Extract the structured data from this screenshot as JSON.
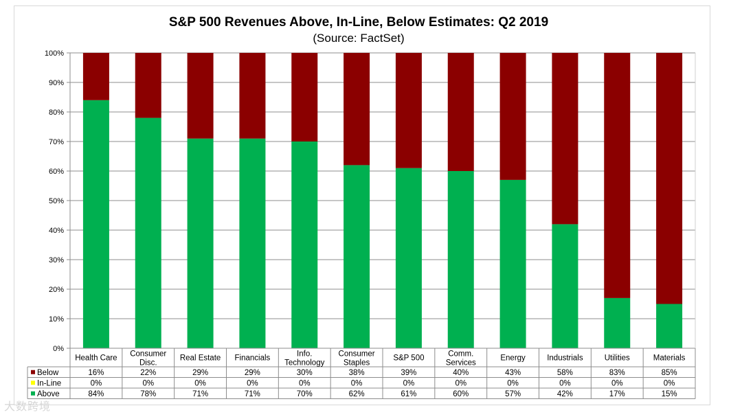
{
  "chart_data": {
    "type": "bar",
    "stacked": true,
    "title": "S&P 500 Revenues Above, In-Line, Below Estimates: Q2 2019",
    "subtitle": "(Source: FactSet)",
    "xlabel": "",
    "ylabel": "",
    "ylim": [
      0,
      100
    ],
    "yticks": [
      "0%",
      "10%",
      "20%",
      "30%",
      "40%",
      "50%",
      "60%",
      "70%",
      "80%",
      "90%",
      "100%"
    ],
    "grid": true,
    "legend_placement": "data-table-left",
    "categories": [
      [
        "Health Care"
      ],
      [
        "Consumer",
        "Disc."
      ],
      [
        "Real Estate"
      ],
      [
        "Financials"
      ],
      [
        "Info.",
        "Technology"
      ],
      [
        "Consumer",
        "Staples"
      ],
      [
        "S&P 500"
      ],
      [
        "Comm.",
        "Services"
      ],
      [
        "Energy"
      ],
      [
        "Industrials"
      ],
      [
        "Utilities"
      ],
      [
        "Materials"
      ]
    ],
    "series": [
      {
        "name": "Below",
        "color": "#8b0000",
        "values": [
          16,
          22,
          29,
          29,
          30,
          38,
          39,
          40,
          43,
          58,
          83,
          85
        ],
        "labels": [
          "16%",
          "22%",
          "29%",
          "29%",
          "30%",
          "38%",
          "39%",
          "40%",
          "43%",
          "58%",
          "83%",
          "85%"
        ]
      },
      {
        "name": "In-Line",
        "color": "#ffff00",
        "values": [
          0,
          0,
          0,
          0,
          0,
          0,
          0,
          0,
          0,
          0,
          0,
          0
        ],
        "labels": [
          "0%",
          "0%",
          "0%",
          "0%",
          "0%",
          "0%",
          "0%",
          "0%",
          "0%",
          "0%",
          "0%",
          "0%"
        ]
      },
      {
        "name": "Above",
        "color": "#00b050",
        "values": [
          84,
          78,
          71,
          71,
          70,
          62,
          61,
          60,
          57,
          42,
          17,
          15
        ],
        "labels": [
          "84%",
          "78%",
          "71%",
          "71%",
          "70%",
          "62%",
          "61%",
          "60%",
          "57%",
          "42%",
          "17%",
          "15%"
        ]
      }
    ]
  },
  "watermark": "大数跨境"
}
